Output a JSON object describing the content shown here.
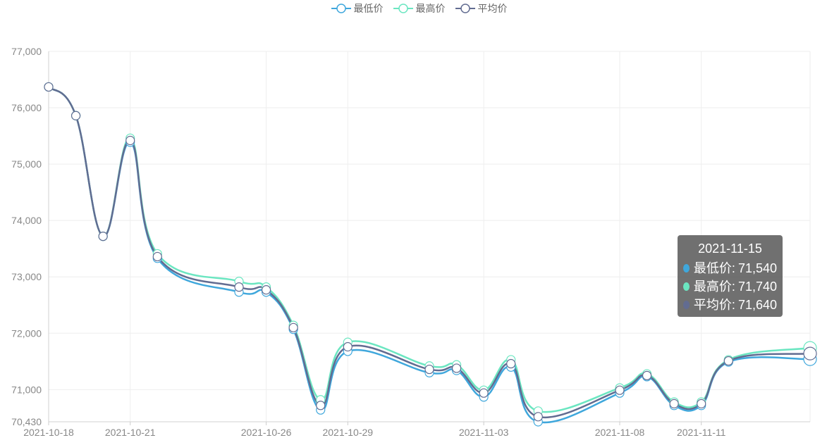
{
  "legend": [
    {
      "name": "最低价",
      "color": "#3fa7dc"
    },
    {
      "name": "最高价",
      "color": "#6be6c1"
    },
    {
      "name": "平均价",
      "color": "#626c91"
    }
  ],
  "tooltip": {
    "date": "2021-11-15",
    "rows": [
      {
        "label": "最低价",
        "value": "71,540",
        "color": "#3fa7dc"
      },
      {
        "label": "最高价",
        "value": "71,740",
        "color": "#6be6c1"
      },
      {
        "label": "平均价",
        "value": "71,640",
        "color": "#626c91"
      }
    ]
  },
  "chart_data": {
    "type": "line",
    "smooth": true,
    "grid": true,
    "legend_position": "top",
    "ylim": [
      70430,
      77000
    ],
    "yticks": [
      70430,
      71000,
      72000,
      73000,
      74000,
      75000,
      76000,
      77000
    ],
    "ytick_labels": [
      "70,430",
      "71,000",
      "72,000",
      "73,000",
      "74,000",
      "75,000",
      "76,000",
      "77,000"
    ],
    "x_labels": [
      "2021-10-18",
      "2021-10-21",
      "2021-10-26",
      "2021-10-29",
      "2021-11-03",
      "2021-11-08",
      "2021-11-11"
    ],
    "x": [
      "2021-10-18",
      "2021-10-19",
      "2021-10-20",
      "2021-10-21",
      "2021-10-22",
      "2021-10-25",
      "2021-10-26",
      "2021-10-27",
      "2021-10-28",
      "2021-10-29",
      "2021-11-01",
      "2021-11-02",
      "2021-11-03",
      "2021-11-04",
      "2021-11-05",
      "2021-11-08",
      "2021-11-09",
      "2021-11-10",
      "2021-11-11",
      "2021-11-12",
      "2021-11-15"
    ],
    "series": [
      {
        "name": "最低价",
        "color": "#3fa7dc",
        "values": [
          76370,
          75860,
          73720,
          75390,
          73330,
          72730,
          72730,
          72070,
          70640,
          71680,
          71300,
          71340,
          70870,
          71400,
          70430,
          70940,
          71230,
          70720,
          70720,
          71490,
          71540
        ]
      },
      {
        "name": "最高价",
        "color": "#6be6c1",
        "values": [
          76370,
          75860,
          73720,
          75460,
          73410,
          72920,
          72820,
          72140,
          70820,
          71840,
          71420,
          71440,
          70990,
          71530,
          70620,
          71030,
          71280,
          70780,
          70780,
          71530,
          71740
        ]
      },
      {
        "name": "平均价",
        "color": "#626c91",
        "values": [
          76370,
          75860,
          73720,
          75420,
          73360,
          72820,
          72770,
          72100,
          70720,
          71760,
          71360,
          71380,
          70940,
          71460,
          70520,
          70990,
          71250,
          70750,
          70750,
          71510,
          71640
        ]
      }
    ]
  }
}
